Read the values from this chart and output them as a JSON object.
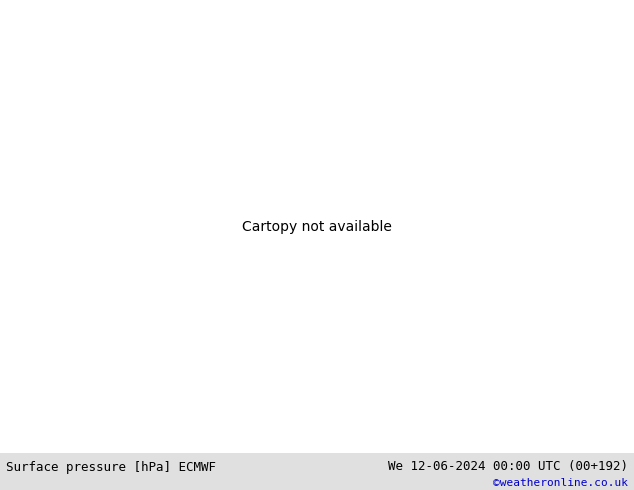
{
  "title_left": "Surface pressure [hPa] ECMWF",
  "title_right": "We 12-06-2024 00:00 UTC (00+192)",
  "credit": "©weatheronline.co.uk",
  "ocean_color": "#d8d8d8",
  "land_color": "#c8f0a0",
  "coast_color": "#808080",
  "border_color": "#a0a0a0",
  "fig_width": 6.34,
  "fig_height": 4.9,
  "dpi": 100,
  "bottom_bar_color": "#e0e0e0",
  "title_fontsize": 9,
  "credit_color": "#0000cc",
  "red": "#cc0000",
  "blue": "#0000cc",
  "black": "#000000",
  "lw_contour": 1.2,
  "lw_thick": 1.6,
  "fs": 7.5,
  "lon_min": -42,
  "lon_max": 42,
  "lat_min": 27,
  "lat_max": 72
}
